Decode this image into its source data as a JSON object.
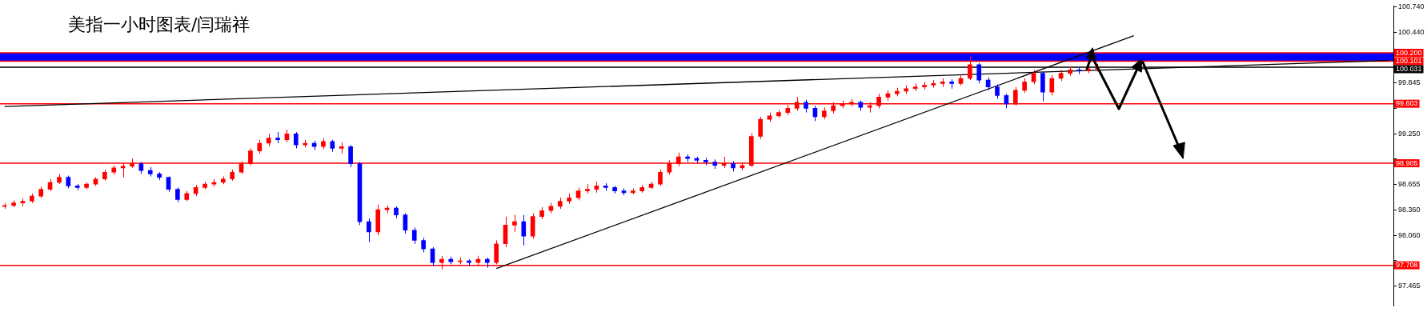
{
  "chart_data": {
    "type": "candlestick",
    "title": "美指一小时图表/闫瑞祥",
    "categories": [
      null,
      null,
      null,
      null,
      null,
      null,
      null,
      null,
      null,
      null,
      null,
      null,
      null,
      null,
      null,
      null,
      null,
      null,
      null,
      null,
      null,
      null,
      null,
      null,
      null,
      null,
      null,
      null,
      null,
      null,
      null,
      null,
      null,
      null,
      null,
      null,
      null,
      null,
      null,
      null,
      null,
      null,
      null,
      null,
      null,
      null,
      null,
      null,
      null,
      null,
      null,
      null,
      null,
      null,
      null,
      null,
      null,
      null,
      null,
      null,
      null,
      null,
      null,
      null,
      null,
      null,
      null,
      null,
      null,
      null,
      null,
      null,
      null,
      null,
      null,
      null,
      null,
      null,
      null,
      null,
      null,
      null,
      null,
      null,
      null,
      null,
      null,
      null,
      null,
      null,
      null,
      null,
      null,
      null,
      null,
      null,
      null,
      null,
      null,
      null,
      null,
      null,
      null,
      null,
      null,
      null,
      null,
      null,
      null,
      null,
      null,
      null,
      null,
      null,
      null,
      null,
      null,
      null,
      null,
      null,
      null,
      null,
      null,
      null,
      null,
      null,
      null,
      null,
      null,
      null,
      null,
      null,
      null,
      null,
      null,
      null,
      null,
      null,
      null,
      null,
      null,
      null,
      null,
      null,
      null,
      null,
      null,
      null,
      null,
      null,
      null,
      null,
      null
    ],
    "ohlc": [
      [
        98.4,
        98.44,
        98.37,
        98.41
      ],
      [
        98.41,
        98.47,
        98.39,
        98.44
      ],
      [
        98.44,
        98.49,
        98.4,
        98.46
      ],
      [
        98.46,
        98.55,
        98.44,
        98.52
      ],
      [
        98.52,
        98.63,
        98.5,
        98.6
      ],
      [
        98.6,
        98.72,
        98.58,
        98.68
      ],
      [
        98.68,
        98.78,
        98.66,
        98.74
      ],
      [
        98.74,
        98.76,
        98.61,
        98.64
      ],
      [
        98.64,
        98.66,
        98.59,
        98.62
      ],
      [
        98.62,
        98.68,
        98.6,
        98.66
      ],
      [
        98.66,
        98.74,
        98.64,
        98.72
      ],
      [
        98.72,
        98.83,
        98.7,
        98.8
      ],
      [
        98.8,
        98.88,
        98.77,
        98.85
      ],
      [
        98.85,
        98.91,
        98.74,
        98.87
      ],
      [
        98.87,
        98.96,
        98.85,
        98.9
      ],
      [
        98.9,
        98.92,
        98.78,
        98.82
      ],
      [
        98.82,
        98.86,
        98.75,
        98.78
      ],
      [
        98.78,
        98.8,
        98.71,
        98.74
      ],
      [
        98.74,
        98.75,
        98.57,
        98.6
      ],
      [
        98.6,
        98.62,
        98.45,
        98.48
      ],
      [
        98.48,
        98.58,
        98.46,
        98.55
      ],
      [
        98.55,
        98.65,
        98.52,
        98.62
      ],
      [
        98.62,
        98.69,
        98.6,
        98.66
      ],
      [
        98.66,
        98.72,
        98.63,
        98.68
      ],
      [
        98.68,
        98.75,
        98.66,
        98.72
      ],
      [
        98.72,
        98.83,
        98.7,
        98.8
      ],
      [
        98.8,
        98.93,
        98.78,
        98.9
      ],
      [
        98.9,
        99.08,
        98.88,
        99.05
      ],
      [
        99.05,
        99.18,
        99.02,
        99.14
      ],
      [
        99.14,
        99.25,
        99.1,
        99.2
      ],
      [
        99.2,
        99.27,
        99.14,
        99.18
      ],
      [
        99.18,
        99.3,
        99.15,
        99.25
      ],
      [
        99.25,
        99.27,
        99.08,
        99.12
      ],
      [
        99.12,
        99.18,
        99.09,
        99.14
      ],
      [
        99.14,
        99.17,
        99.06,
        99.1
      ],
      [
        99.1,
        99.2,
        99.07,
        99.16
      ],
      [
        99.16,
        99.18,
        99.04,
        99.08
      ],
      [
        99.08,
        99.15,
        99.02,
        99.1
      ],
      [
        99.1,
        99.12,
        98.86,
        98.9
      ],
      [
        98.9,
        98.92,
        98.18,
        98.22
      ],
      [
        98.22,
        98.26,
        97.98,
        98.1
      ],
      [
        98.1,
        98.42,
        98.06,
        98.36
      ],
      [
        98.36,
        98.41,
        98.32,
        98.38
      ],
      [
        98.38,
        98.4,
        98.26,
        98.3
      ],
      [
        98.3,
        98.32,
        98.08,
        98.12
      ],
      [
        98.12,
        98.15,
        97.96,
        98.0
      ],
      [
        98.0,
        98.03,
        97.86,
        97.9
      ],
      [
        97.9,
        97.92,
        97.7,
        97.74
      ],
      [
        97.74,
        97.82,
        97.66,
        97.78
      ],
      [
        97.78,
        97.81,
        97.72,
        97.75
      ],
      [
        97.75,
        97.8,
        97.72,
        97.76
      ],
      [
        97.76,
        97.78,
        97.7,
        97.74
      ],
      [
        97.74,
        97.82,
        97.71,
        97.78
      ],
      [
        97.78,
        97.8,
        97.68,
        97.74
      ],
      [
        97.74,
        98.0,
        97.72,
        97.96
      ],
      [
        97.96,
        98.28,
        97.92,
        98.18
      ],
      [
        98.18,
        98.3,
        98.1,
        98.22
      ],
      [
        98.22,
        98.3,
        97.94,
        98.05
      ],
      [
        98.05,
        98.32,
        98.02,
        98.28
      ],
      [
        98.28,
        98.39,
        98.25,
        98.35
      ],
      [
        98.35,
        98.44,
        98.32,
        98.4
      ],
      [
        98.4,
        98.5,
        98.37,
        98.46
      ],
      [
        98.46,
        98.55,
        98.43,
        98.5
      ],
      [
        98.5,
        98.62,
        98.47,
        98.58
      ],
      [
        98.58,
        98.66,
        98.55,
        98.6
      ],
      [
        98.6,
        98.69,
        98.56,
        98.64
      ],
      [
        98.64,
        98.67,
        98.58,
        98.62
      ],
      [
        98.62,
        98.64,
        98.55,
        98.58
      ],
      [
        98.58,
        98.61,
        98.53,
        98.56
      ],
      [
        98.56,
        98.61,
        98.54,
        98.58
      ],
      [
        98.58,
        98.65,
        98.56,
        98.62
      ],
      [
        98.62,
        98.69,
        98.6,
        98.66
      ],
      [
        98.66,
        98.83,
        98.64,
        98.8
      ],
      [
        98.8,
        98.94,
        98.77,
        98.9
      ],
      [
        98.9,
        99.03,
        98.87,
        98.98
      ],
      [
        98.98,
        99.01,
        98.92,
        98.96
      ],
      [
        98.96,
        98.98,
        98.91,
        98.94
      ],
      [
        98.94,
        98.97,
        98.88,
        98.92
      ],
      [
        98.92,
        98.95,
        98.84,
        98.88
      ],
      [
        98.88,
        98.98,
        98.85,
        98.9
      ],
      [
        98.9,
        98.93,
        98.81,
        98.85
      ],
      [
        98.85,
        98.91,
        98.82,
        98.88
      ],
      [
        98.88,
        99.26,
        98.86,
        99.22
      ],
      [
        99.22,
        99.45,
        99.19,
        99.42
      ],
      [
        99.42,
        99.5,
        99.39,
        99.46
      ],
      [
        99.46,
        99.53,
        99.44,
        99.5
      ],
      [
        99.5,
        99.59,
        99.47,
        99.55
      ],
      [
        99.55,
        99.68,
        99.52,
        99.62
      ],
      [
        99.62,
        99.65,
        99.5,
        99.55
      ],
      [
        99.55,
        99.58,
        99.4,
        99.45
      ],
      [
        99.45,
        99.56,
        99.42,
        99.52
      ],
      [
        99.52,
        99.62,
        99.49,
        99.58
      ],
      [
        99.58,
        99.64,
        99.55,
        99.6
      ],
      [
        99.6,
        99.66,
        99.57,
        99.62
      ],
      [
        99.62,
        99.64,
        99.52,
        99.56
      ],
      [
        99.56,
        99.62,
        99.5,
        99.58
      ],
      [
        99.58,
        99.72,
        99.55,
        99.68
      ],
      [
        99.68,
        99.76,
        99.64,
        99.72
      ],
      [
        99.72,
        99.79,
        99.69,
        99.75
      ],
      [
        99.75,
        99.82,
        99.72,
        99.78
      ],
      [
        99.78,
        99.84,
        99.75,
        99.8
      ],
      [
        99.8,
        99.86,
        99.77,
        99.82
      ],
      [
        99.82,
        99.88,
        99.79,
        99.84
      ],
      [
        99.84,
        99.9,
        99.8,
        99.86
      ],
      [
        99.86,
        99.89,
        99.78,
        99.84
      ],
      [
        99.84,
        99.95,
        99.82,
        99.9
      ],
      [
        99.9,
        100.16,
        99.88,
        100.06
      ],
      [
        100.06,
        100.08,
        99.84,
        99.88
      ],
      [
        99.88,
        99.91,
        99.76,
        99.8
      ],
      [
        99.8,
        99.83,
        99.66,
        99.7
      ],
      [
        99.7,
        99.72,
        99.55,
        99.6
      ],
      [
        99.6,
        99.8,
        99.58,
        99.76
      ],
      [
        99.76,
        99.9,
        99.73,
        99.86
      ],
      [
        99.86,
        100.0,
        99.83,
        99.96
      ],
      [
        99.96,
        99.98,
        99.63,
        99.74
      ],
      [
        99.74,
        99.94,
        99.7,
        99.9
      ],
      [
        99.9,
        100.0,
        99.87,
        99.96
      ],
      [
        99.96,
        100.04,
        99.93,
        100.0
      ],
      [
        100.0,
        100.03,
        99.95,
        99.99
      ],
      [
        99.99,
        100.05,
        99.96,
        100.01
      ],
      [
        100.01,
        100.07,
        99.98,
        100.03
      ],
      null,
      null,
      null,
      null,
      null,
      null,
      null,
      null,
      null,
      null,
      null,
      null,
      null,
      null,
      null,
      null,
      null,
      null,
      null,
      null,
      null,
      null,
      null,
      null,
      null,
      null,
      null,
      null,
      null,
      null,
      null,
      null
    ],
    "colors": [
      "#ff0000",
      "#ff0000",
      "#ff0000",
      "#ff0000",
      "#ff0000",
      "#ff0000",
      "#ff0000",
      "#0000ff",
      "#0000ff",
      "#ff0000",
      "#ff0000",
      "#ff0000",
      "#ff0000",
      "#ff0000",
      "#ff0000",
      "#0000ff",
      "#0000ff",
      "#0000ff",
      "#0000ff",
      "#0000ff",
      "#ff0000",
      "#ff0000",
      "#ff0000",
      "#ff0000",
      "#ff0000",
      "#ff0000",
      "#ff0000",
      "#ff0000",
      "#ff0000",
      "#ff0000",
      "#0000ff",
      "#ff0000",
      "#0000ff",
      "#ff0000",
      "#0000ff",
      "#ff0000",
      "#0000ff",
      "#ff0000",
      "#0000ff",
      "#0000ff",
      "#0000ff",
      "#ff0000",
      "#ff0000",
      "#0000ff",
      "#0000ff",
      "#0000ff",
      "#0000ff",
      "#0000ff",
      "#ff0000",
      "#0000ff",
      "#ff0000",
      "#0000ff",
      "#ff0000",
      "#0000ff",
      "#ff0000",
      "#ff0000",
      "#ff0000",
      "#0000ff",
      "#ff0000",
      "#ff0000",
      "#ff0000",
      "#ff0000",
      "#ff0000",
      "#ff0000",
      "#ff0000",
      "#ff0000",
      "#0000ff",
      "#0000ff",
      "#0000ff",
      "#ff0000",
      "#ff0000",
      "#ff0000",
      "#ff0000",
      "#ff0000",
      "#ff0000",
      "#0000ff",
      "#0000ff",
      "#0000ff",
      "#0000ff",
      "#ff0000",
      "#0000ff",
      "#ff0000",
      "#ff0000",
      "#ff0000",
      "#ff0000",
      "#ff0000",
      "#ff0000",
      "#ff0000",
      "#0000ff",
      "#0000ff",
      "#ff0000",
      "#ff0000",
      "#ff0000",
      "#ff0000",
      "#0000ff",
      "#ff0000",
      "#ff0000",
      "#ff0000",
      "#ff0000",
      "#ff0000",
      "#ff0000",
      "#ff0000",
      "#ff0000",
      "#ff0000",
      "#0000ff",
      "#ff0000",
      "#ff0000",
      "#0000ff",
      "#0000ff",
      "#0000ff",
      "#0000ff",
      "#ff0000",
      "#ff0000",
      "#ff0000",
      "#0000ff",
      "#ff0000",
      "#ff0000",
      "#ff0000",
      "#0000ff",
      "#ff0000",
      "#ff0000",
      null,
      null,
      null,
      null,
      null,
      null,
      null,
      null,
      null,
      null,
      null,
      null,
      null,
      null,
      null,
      null,
      null,
      null,
      null,
      null,
      null,
      null,
      null,
      null,
      null,
      null,
      null,
      null,
      null,
      null,
      null,
      null
    ],
    "series": [
      {
        "type": "line",
        "color": "#000000",
        "values": [
          99.57,
          null,
          null,
          null,
          null,
          null,
          null,
          null,
          null,
          null,
          null,
          null,
          null,
          null,
          null,
          null,
          null,
          null,
          null,
          null,
          null,
          null,
          null,
          null,
          null,
          null,
          null,
          null,
          null,
          null,
          null,
          null,
          null,
          null,
          null,
          null,
          null,
          null,
          null,
          null,
          null,
          null,
          null,
          null,
          null,
          null,
          null,
          null,
          null,
          null,
          null,
          null,
          null,
          null,
          null,
          null,
          null,
          null,
          null,
          null,
          null,
          null,
          null,
          null,
          null,
          null,
          null,
          null,
          null,
          null,
          null,
          null,
          null,
          null,
          null,
          null,
          null,
          null,
          null,
          null,
          null,
          null,
          null,
          null,
          null,
          null,
          null,
          null,
          null,
          null,
          null,
          null,
          null,
          null,
          null,
          null,
          null,
          null,
          null,
          null,
          null,
          null,
          null,
          null,
          null,
          null,
          null,
          null,
          null,
          null,
          null,
          null,
          null,
          null,
          null,
          null,
          null,
          null,
          null,
          null,
          null,
          null,
          null,
          null,
          null,
          null,
          null,
          null,
          null,
          null,
          null,
          null,
          null,
          null,
          null,
          null,
          null,
          null,
          null,
          null,
          null,
          null,
          null,
          null,
          null,
          null,
          null,
          null,
          null,
          null,
          null,
          null,
          100.11
        ]
      },
      {
        "type": "line",
        "color": "#000000",
        "values": [
          null,
          null,
          null,
          null,
          null,
          null,
          null,
          null,
          null,
          null,
          null,
          null,
          null,
          null,
          null,
          null,
          null,
          null,
          null,
          null,
          null,
          null,
          null,
          null,
          null,
          null,
          null,
          null,
          null,
          null,
          null,
          null,
          null,
          null,
          null,
          null,
          null,
          null,
          null,
          null,
          null,
          null,
          null,
          null,
          null,
          null,
          null,
          null,
          null,
          null,
          null,
          null,
          null,
          null,
          97.67,
          null,
          null,
          null,
          null,
          null,
          null,
          null,
          null,
          null,
          null,
          null,
          null,
          null,
          null,
          null,
          null,
          null,
          null,
          null,
          null,
          null,
          null,
          null,
          null,
          null,
          null,
          null,
          null,
          null,
          null,
          null,
          null,
          null,
          null,
          null,
          null,
          null,
          null,
          null,
          null,
          null,
          null,
          null,
          null,
          null,
          null,
          null,
          null,
          null,
          null,
          null,
          null,
          null,
          null,
          null,
          null,
          null,
          null,
          null,
          null,
          null,
          null,
          null,
          null,
          null,
          null,
          null,
          null,
          null,
          100.4,
          null,
          null,
          null,
          null,
          null,
          null,
          null,
          null,
          null,
          null,
          null,
          null,
          null,
          null,
          null,
          null,
          null,
          null,
          null,
          null,
          null,
          null,
          null,
          null,
          null,
          null,
          null,
          null
        ]
      }
    ],
    "ylim": [
      97.23,
      100.75
    ],
    "yticks": [
      {
        "value": 100.74,
        "label": "100.740"
      },
      {
        "value": 100.44,
        "label": "100.440"
      },
      {
        "value": 99.845,
        "label": "99.845"
      },
      {
        "value": 99.55,
        "label": null
      },
      {
        "value": 99.25,
        "label": "99.250"
      },
      {
        "value": 98.955,
        "label": null
      },
      {
        "value": 98.655,
        "label": "98.655"
      },
      {
        "value": 98.36,
        "label": "98.360"
      },
      {
        "value": 98.06,
        "label": "98.060"
      },
      {
        "value": 97.765,
        "label": null
      },
      {
        "value": 97.465,
        "label": "97.465"
      }
    ],
    "bands": [
      {
        "axis": "y",
        "from": 100.101,
        "to": 100.2,
        "color": "#0000ff"
      }
    ],
    "ref_lines": [
      {
        "axis": "y",
        "value": 100.2,
        "label": "100.200",
        "color": "#ff0000"
      },
      {
        "axis": "y",
        "value": 100.101,
        "label": "100.101",
        "color": "#ff0000"
      },
      {
        "axis": "y",
        "value": 100.031,
        "label": "100.031",
        "color": "#000000"
      },
      {
        "axis": "y",
        "value": 99.603,
        "label": "99.603",
        "color": "#ff0000"
      },
      {
        "axis": "y",
        "value": 98.905,
        "label": "98.905",
        "color": "#ff0000"
      },
      {
        "axis": "y",
        "value": 97.708,
        "label": "97.708",
        "color": "#ff0000"
      }
    ],
    "tick_labels": "y",
    "grid": false,
    "legend": false
  }
}
